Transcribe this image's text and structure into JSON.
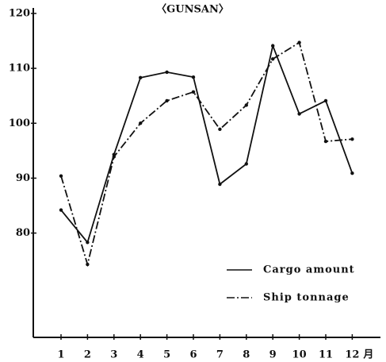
{
  "chart_data": {
    "type": "line",
    "title": "〈GUNSAN〉",
    "categories": [
      "1",
      "2",
      "3",
      "4",
      "5",
      "6",
      "7",
      "8",
      "9",
      "10",
      "11",
      "12"
    ],
    "x_unit": "月",
    "series": [
      {
        "name": "Cargo amount",
        "color": "#111111",
        "dash": "none",
        "values": [
          84.2,
          78.3,
          94.3,
          108.3,
          109.3,
          108.4,
          88.9,
          92.6,
          114.1,
          101.7,
          104.1,
          90.9
        ]
      },
      {
        "name": "Ship tonnage",
        "color": "#111111",
        "dash": "10 3 2 3",
        "values": [
          90.4,
          74.3,
          93.9,
          100.0,
          104.1,
          105.7,
          98.9,
          103.3,
          111.7,
          114.7,
          96.7,
          97.1
        ]
      }
    ],
    "ylim": [
      61,
      121
    ],
    "yticks": [
      80,
      90,
      100,
      110,
      120
    ],
    "grid": false,
    "legend": "lower right"
  }
}
